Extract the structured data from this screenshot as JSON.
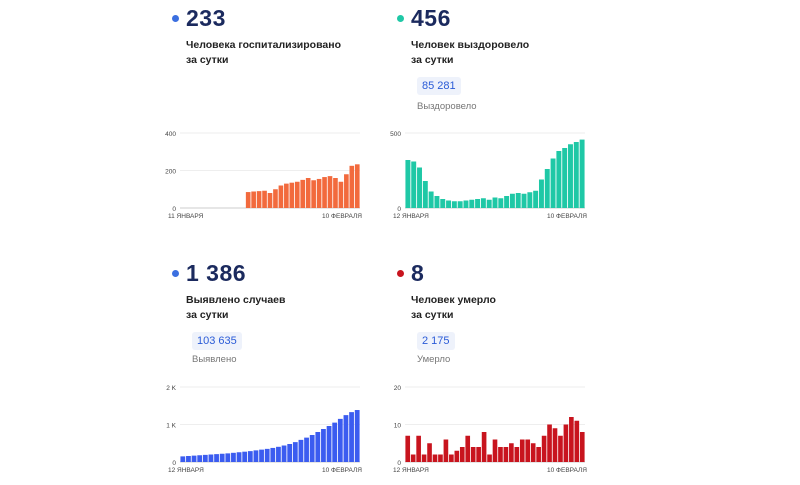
{
  "panels": [
    {
      "id": "hospitalized",
      "value": "233",
      "desc_line1": "Человека госпитализировано",
      "desc_line2": "за сутки",
      "total": "",
      "total_label": "",
      "color": "#f26a3d",
      "dot_color": "#3b6fe0"
    },
    {
      "id": "recovered",
      "value": "456",
      "desc_line1": "Человек выздоровело",
      "desc_line2": "за сутки",
      "total": "85 281",
      "total_label": "Выздоровело",
      "color": "#1fc8a6",
      "dot_color": "#1fc8a6"
    },
    {
      "id": "cases",
      "value": "1 386",
      "desc_line1": "Выявлено случаев",
      "desc_line2": "за сутки",
      "total": "103 635",
      "total_label": "Выявлено",
      "color": "#3b5cf0",
      "dot_color": "#3b6fe0"
    },
    {
      "id": "deaths",
      "value": "8",
      "desc_line1": "Человек умерло",
      "desc_line2": "за сутки",
      "total": "2 175",
      "total_label": "Умерло",
      "color": "#c8141e",
      "dot_color": "#c8141e"
    }
  ],
  "chart_data": [
    {
      "type": "bar",
      "x_start_label": "11 ЯНВАРЯ",
      "x_end_label": "10 ФЕВРАЛЯ",
      "ylim": [
        0,
        400
      ],
      "yticks": [
        0,
        200,
        400
      ],
      "ytick_labels": [
        "0",
        "200",
        "400"
      ],
      "values": [
        0,
        0,
        0,
        0,
        0,
        0,
        0,
        0,
        0,
        0,
        0,
        0,
        85,
        88,
        90,
        92,
        80,
        100,
        120,
        130,
        135,
        140,
        150,
        160,
        148,
        155,
        165,
        170,
        160,
        140,
        180,
        225,
        233
      ],
      "color": "#f26a3d"
    },
    {
      "type": "bar",
      "x_start_label": "12 ЯНВАРЯ",
      "x_end_label": "10 ФЕВРАЛЯ",
      "ylim": [
        0,
        500
      ],
      "yticks": [
        0,
        500
      ],
      "ytick_labels": [
        "0",
        "500"
      ],
      "values": [
        320,
        310,
        270,
        180,
        110,
        80,
        60,
        50,
        45,
        45,
        50,
        55,
        60,
        65,
        55,
        70,
        65,
        80,
        95,
        100,
        95,
        105,
        115,
        190,
        260,
        330,
        380,
        400,
        425,
        440,
        456
      ],
      "color": "#1fc8a6"
    },
    {
      "type": "bar",
      "x_start_label": "12 ЯНВАРЯ",
      "x_end_label": "10 ФЕВРАЛЯ",
      "ylim": [
        0,
        2000
      ],
      "yticks": [
        0,
        1000,
        2000
      ],
      "ytick_labels": [
        "0",
        "1 K",
        "2 K"
      ],
      "values": [
        150,
        160,
        170,
        180,
        190,
        200,
        210,
        220,
        230,
        245,
        260,
        275,
        290,
        310,
        330,
        350,
        375,
        405,
        440,
        480,
        530,
        590,
        650,
        720,
        800,
        880,
        960,
        1050,
        1150,
        1250,
        1330,
        1386
      ],
      "color": "#3b5cf0"
    },
    {
      "type": "bar",
      "x_start_label": "12 ЯНВАРЯ",
      "x_end_label": "10 ФЕВРАЛЯ",
      "ylim": [
        0,
        20
      ],
      "yticks": [
        0,
        10,
        20
      ],
      "ytick_labels": [
        "0",
        "10",
        "20"
      ],
      "values": [
        7,
        2,
        7,
        2,
        5,
        2,
        2,
        6,
        2,
        3,
        4,
        7,
        4,
        4,
        8,
        2,
        6,
        4,
        4,
        5,
        4,
        6,
        6,
        5,
        4,
        7,
        10,
        9,
        7,
        10,
        12,
        11,
        8
      ],
      "color": "#c8141e"
    }
  ]
}
